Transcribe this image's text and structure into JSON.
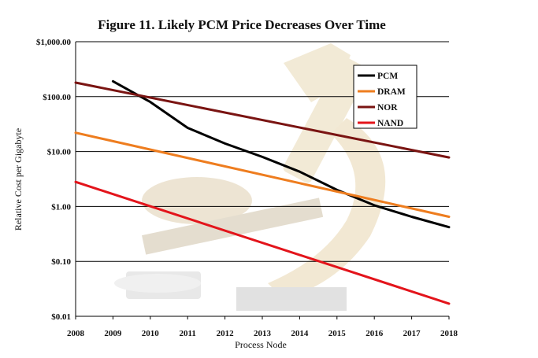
{
  "chart_data": {
    "type": "line",
    "title": "Figure 11. Likely PCM Price Decreases Over Time",
    "xlabel": "Process Node",
    "ylabel": "Relative Cost per Gigabyte",
    "yscale": "log",
    "ylim": [
      0.01,
      1000
    ],
    "xlim": [
      2008,
      2018
    ],
    "x_ticks": [
      "2008",
      "2009",
      "2010",
      "2011",
      "2012",
      "2013",
      "2014",
      "2015",
      "2016",
      "2017",
      "2018"
    ],
    "y_ticks": [
      {
        "value": 1000,
        "label": "$1,000.00"
      },
      {
        "value": 100,
        "label": "$100.00"
      },
      {
        "value": 10,
        "label": "$10.00"
      },
      {
        "value": 1,
        "label": "$1.00"
      },
      {
        "value": 0.1,
        "label": "$0.10"
      },
      {
        "value": 0.01,
        "label": "$0.01"
      }
    ],
    "grid": "horizontal",
    "legend": "top-right",
    "background_image": "microscope-watermark",
    "series": [
      {
        "name": "PCM",
        "color": "#000000",
        "x": [
          2009,
          2010,
          2011,
          2012,
          2013,
          2014,
          2015,
          2016,
          2017,
          2018
        ],
        "y": [
          190,
          80,
          27,
          14,
          8,
          4.3,
          2.0,
          1.05,
          0.65,
          0.42
        ]
      },
      {
        "name": "DRAM",
        "color": "#ee7d1f",
        "x": [
          2008,
          2018
        ],
        "y": [
          22,
          0.65
        ]
      },
      {
        "name": "NOR",
        "color": "#7a1412",
        "x": [
          2008,
          2018
        ],
        "y": [
          180,
          7.8
        ]
      },
      {
        "name": "NAND",
        "color": "#e3141b",
        "x": [
          2008,
          2018
        ],
        "y": [
          2.8,
          0.017
        ]
      }
    ]
  }
}
